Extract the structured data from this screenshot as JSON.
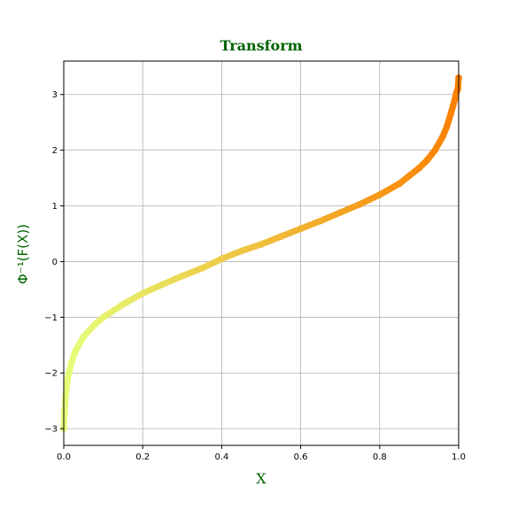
{
  "chart_data": {
    "type": "scatter",
    "title": "Transform",
    "xlabel": "X",
    "ylabel": "Φ⁻¹(F(X))",
    "xlim": [
      0.0,
      1.0
    ],
    "ylim": [
      -3.3,
      3.6
    ],
    "xticks": [
      0.0,
      0.2,
      0.4,
      0.6,
      0.8,
      1.0
    ],
    "xtick_labels": [
      "0.0",
      "0.2",
      "0.4",
      "0.6",
      "0.8",
      "1.0"
    ],
    "yticks": [
      -3,
      -2,
      -1,
      0,
      1,
      2,
      3
    ],
    "ytick_labels": [
      "−3",
      "−2",
      "−1",
      "0",
      "1",
      "2",
      "3"
    ],
    "grid": true,
    "label_color": "#006400",
    "colormap": "yellow-to-orange (Wistia-like), colored by x",
    "color_start": "#e4ff7a",
    "color_end": "#fc7f00",
    "series": [
      {
        "x": [
          0.0,
          0.002,
          0.005,
          0.01,
          0.02,
          0.03,
          0.05,
          0.08,
          0.1,
          0.15,
          0.2,
          0.25,
          0.3,
          0.35,
          0.4,
          0.45,
          0.5,
          0.55,
          0.6,
          0.65,
          0.7,
          0.75,
          0.8,
          0.85,
          0.9,
          0.92,
          0.94,
          0.96,
          0.97,
          0.98,
          0.99,
          0.995,
          0.998,
          1.0
        ],
        "y": [
          -3.0,
          -2.7,
          -2.4,
          -2.1,
          -1.8,
          -1.6,
          -1.35,
          -1.12,
          -1.0,
          -0.77,
          -0.57,
          -0.41,
          -0.26,
          -0.12,
          0.05,
          0.19,
          0.31,
          0.45,
          0.59,
          0.73,
          0.88,
          1.03,
          1.2,
          1.4,
          1.68,
          1.82,
          2.0,
          2.25,
          2.42,
          2.65,
          2.9,
          3.05,
          3.1,
          3.3
        ]
      }
    ]
  }
}
